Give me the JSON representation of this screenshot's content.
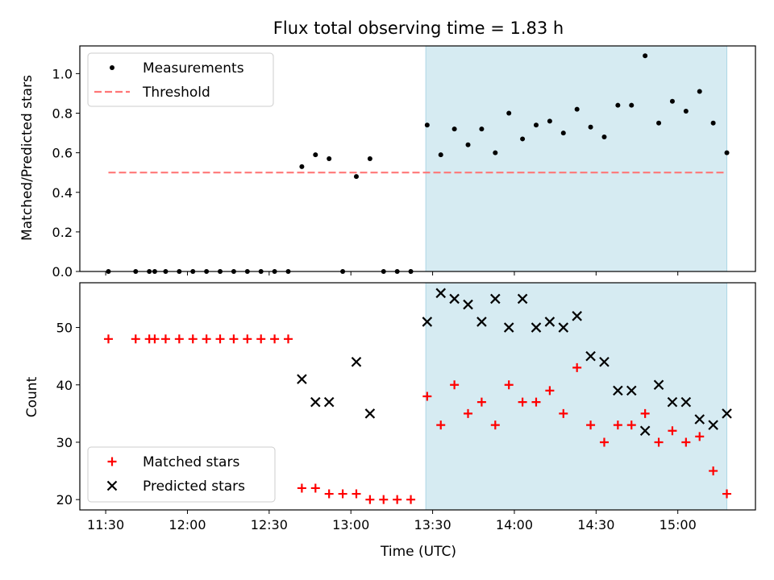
{
  "chart_data": {
    "type": "scatter",
    "title": "Flux total observing time = 1.83 h",
    "xlabel": "Time (UTC)",
    "x_ticks": [
      "11:30",
      "12:00",
      "12:30",
      "13:00",
      "13:30",
      "14:00",
      "14:30",
      "15:00"
    ],
    "x_tick_minutes": [
      690,
      720,
      750,
      780,
      810,
      840,
      870,
      900
    ],
    "xlim_minutes": [
      680.5,
      928.5
    ],
    "highlight_span_minutes": [
      807.5,
      918.0
    ],
    "highlight_color": "#add8e6",
    "top": {
      "ylabel": "Matched/Predicted stars",
      "ylim": [
        0,
        1.14
      ],
      "y_ticks": [
        "0.0",
        "0.2",
        "0.4",
        "0.6",
        "0.8",
        "1.0"
      ],
      "threshold": {
        "value": 0.5,
        "x_range_minutes": [
          691,
          918
        ],
        "color": "#ff7777"
      },
      "legend": {
        "position": "upper-left",
        "entries": [
          "Measurements",
          "Threshold"
        ]
      },
      "series": [
        {
          "name": "Measurements",
          "color": "#000000",
          "x": [
            691,
            701,
            706,
            708,
            712,
            717,
            722,
            727,
            732,
            737,
            742,
            747,
            752,
            757,
            762,
            767,
            772,
            777,
            782,
            787,
            792,
            797,
            802,
            808,
            813,
            818,
            823,
            828,
            833,
            838,
            843,
            848,
            853,
            858,
            863,
            868,
            873,
            878,
            883,
            888,
            893,
            898,
            903,
            908,
            913,
            918
          ],
          "y": [
            0,
            0,
            0,
            0,
            0,
            0,
            0,
            0,
            0,
            0,
            0,
            0,
            0,
            0,
            0.53,
            0.59,
            0.57,
            0,
            0.48,
            0.57,
            0,
            0,
            0,
            0.74,
            0.59,
            0.72,
            0.64,
            0.72,
            0.6,
            0.8,
            0.67,
            0.74,
            0.76,
            0.7,
            0.82,
            0.73,
            0.68,
            0.84,
            0.84,
            1.09,
            0.75,
            0.86,
            0.81,
            0.91,
            0.75,
            0.6
          ]
        }
      ]
    },
    "bottom": {
      "ylabel": "Count",
      "ylim": [
        18.2,
        57.8
      ],
      "y_ticks": [
        "20",
        "30",
        "40",
        "50"
      ],
      "legend": {
        "position": "lower-left",
        "entries": [
          "Matched stars",
          "Predicted stars"
        ]
      },
      "series": [
        {
          "name": "Matched stars",
          "marker": "plus",
          "color": "#ff0000",
          "x": [
            691,
            701,
            706,
            708,
            712,
            717,
            722,
            727,
            732,
            737,
            742,
            747,
            752,
            757,
            762,
            767,
            772,
            777,
            782,
            787,
            792,
            797,
            802,
            808,
            813,
            818,
            823,
            828,
            833,
            838,
            843,
            848,
            853,
            858,
            863,
            868,
            873,
            878,
            883,
            888,
            893,
            898,
            903,
            908,
            913,
            918
          ],
          "y": [
            48,
            48,
            48,
            48,
            48,
            48,
            48,
            48,
            48,
            48,
            48,
            48,
            48,
            48,
            22,
            22,
            21,
            21,
            21,
            20,
            20,
            20,
            20,
            38,
            33,
            40,
            35,
            37,
            33,
            40,
            37,
            37,
            39,
            35,
            43,
            33,
            30,
            33,
            33,
            35,
            30,
            32,
            30,
            31,
            25,
            21
          ]
        },
        {
          "name": "Predicted stars",
          "marker": "x",
          "color": "#000000",
          "x": [
            762,
            767,
            772,
            782,
            787,
            808,
            813,
            818,
            823,
            828,
            833,
            838,
            843,
            848,
            853,
            858,
            863,
            868,
            873,
            878,
            883,
            888,
            893,
            898,
            903,
            908,
            913,
            918
          ],
          "y": [
            41,
            37,
            37,
            44,
            35,
            51,
            56,
            55,
            54,
            51,
            55,
            50,
            55,
            50,
            51,
            50,
            52,
            45,
            44,
            39,
            39,
            32,
            40,
            37,
            37,
            34,
            33,
            35
          ]
        }
      ]
    }
  }
}
